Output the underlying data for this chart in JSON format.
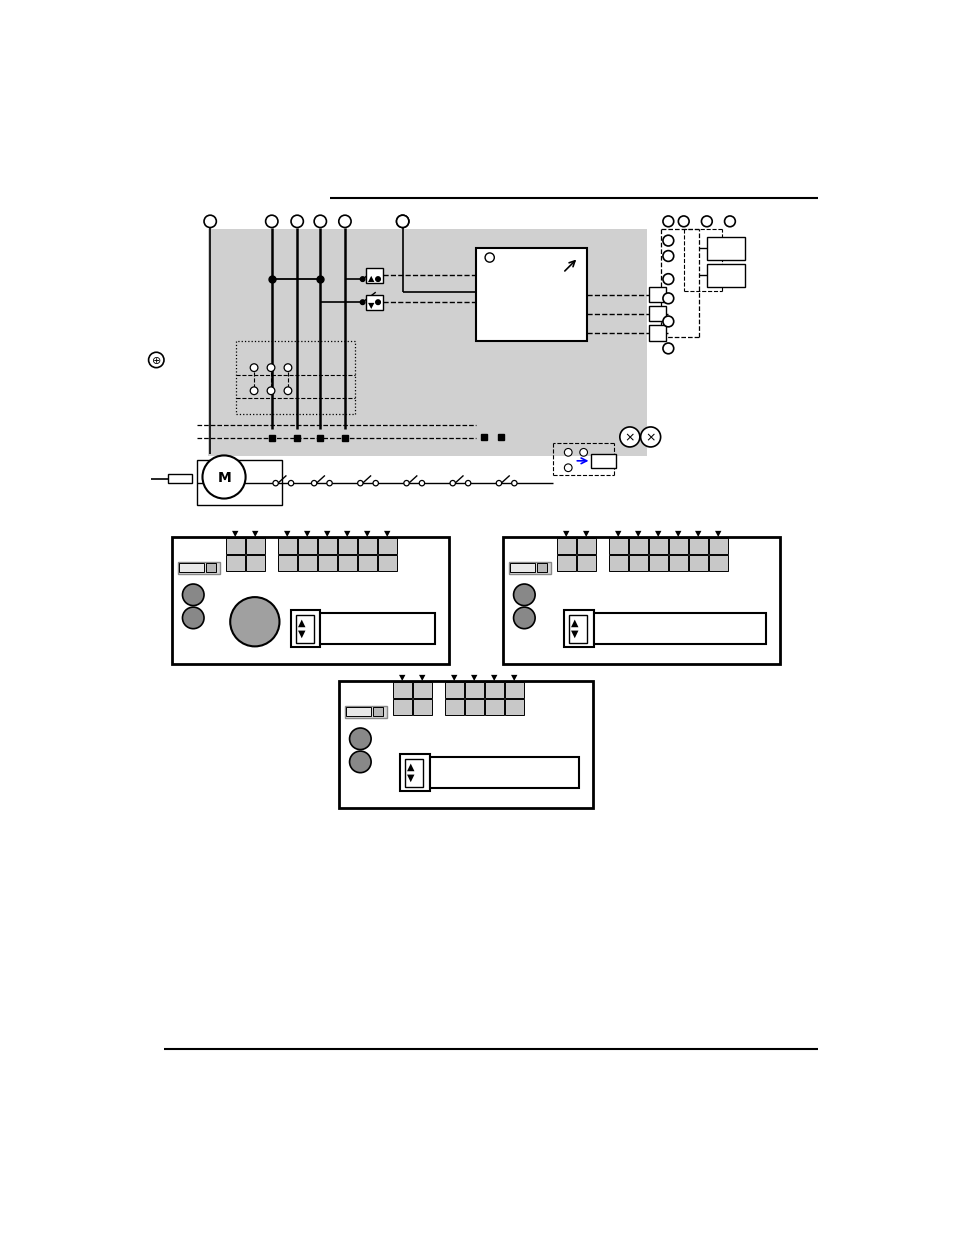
{
  "bg_color": "#ffffff",
  "diagram_bg_color": "#d0d0d0",
  "gray_light": "#c8c8c8",
  "gray_medium": "#909090",
  "gray_dark": "#888888",
  "black": "#000000",
  "white": "#ffffff"
}
